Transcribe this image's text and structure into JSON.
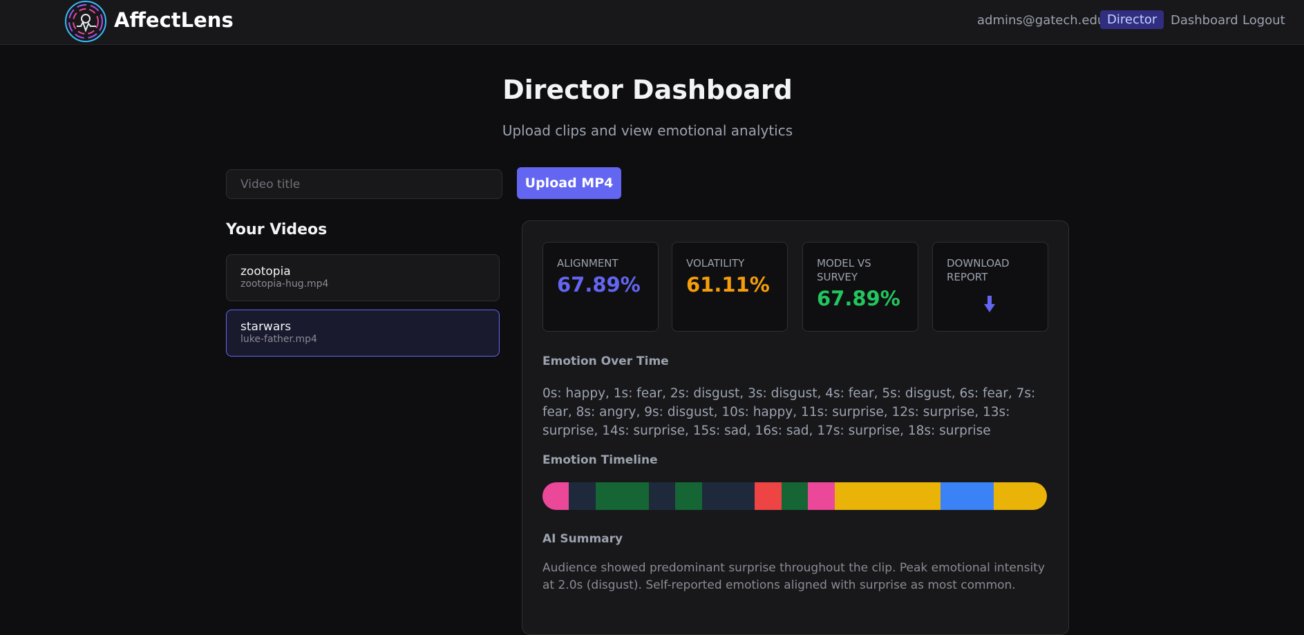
{
  "header": {
    "brand": "AffectLens",
    "nav": {
      "user": "admins@gatech.edu",
      "director": "Director",
      "dashboard": "Dashboard",
      "logout": "Logout"
    }
  },
  "page": {
    "title": "Director Dashboard",
    "subtitle": "Upload clips and view emotional analytics"
  },
  "upload": {
    "placeholder": "Video title",
    "button": "Upload MP4"
  },
  "videos": {
    "heading": "Your Videos",
    "items": [
      {
        "title": "zootopia",
        "file": "zootopia-hug.mp4",
        "selected": false
      },
      {
        "title": "starwars",
        "file": "luke-father.mp4",
        "selected": true
      }
    ]
  },
  "stats": [
    {
      "label": "ALIGNMENT",
      "value": "67.89%",
      "color": "#6366f1"
    },
    {
      "label": "VOLATILITY",
      "value": "61.11%",
      "color": "#f59e0b"
    },
    {
      "label": "MODEL VS SURVEY",
      "value": "67.89%",
      "color": "#22c55e"
    },
    {
      "label": "DOWNLOAD REPORT"
    }
  ],
  "emotion_over_time": {
    "heading": "Emotion Over Time",
    "text": "0s: happy, 1s: fear, 2s: disgust, 3s: disgust, 4s: fear, 5s: disgust, 6s: fear, 7s: fear, 8s: angry, 9s: disgust, 10s: happy, 11s: surprise, 12s: surprise, 13s: surprise, 14s: surprise, 15s: sad, 16s: sad, 17s: surprise, 18s: surprise"
  },
  "timeline": {
    "heading": "Emotion Timeline",
    "colors": [
      "#ec4899",
      "#1e293b",
      "#166534",
      "#166534",
      "#1e293b",
      "#166534",
      "#1e293b",
      "#1e293b",
      "#ef4444",
      "#166534",
      "#ec4899",
      "#eab308",
      "#eab308",
      "#eab308",
      "#eab308",
      "#3b82f6",
      "#3b82f6",
      "#eab308",
      "#eab308"
    ]
  },
  "summary": {
    "heading": "AI Summary",
    "text": "Audience showed predominant surprise throughout the clip. Peak emotional intensity at 2.0s (disgust). Self-reported emotions aligned with surprise as most common."
  }
}
